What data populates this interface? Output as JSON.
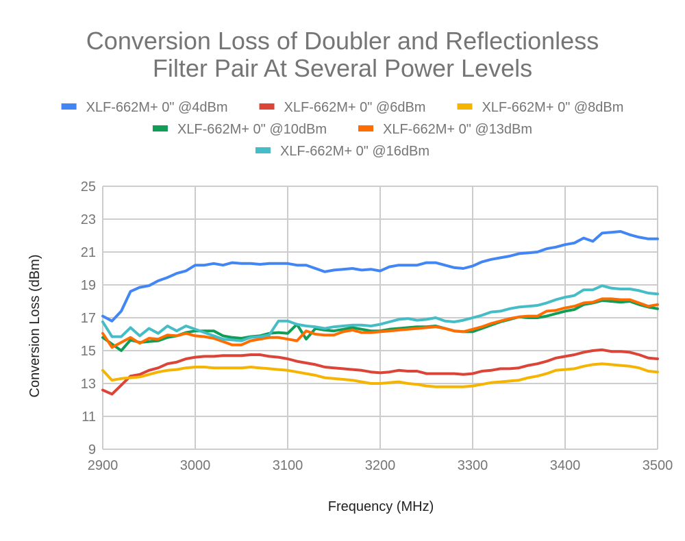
{
  "chart_data": {
    "type": "line",
    "title": [
      "Conversion Loss of Doubler and Reflectionless",
      "Filter Pair At Several Power Levels"
    ],
    "xlabel": "Frequency (MHz)",
    "ylabel": "Conversion Loss (dBm)",
    "xlim": [
      2900,
      3500
    ],
    "ylim": [
      9,
      25
    ],
    "x_ticks": [
      2900,
      3000,
      3100,
      3200,
      3300,
      3400,
      3500
    ],
    "y_ticks": [
      9,
      11,
      13,
      15,
      17,
      19,
      21,
      23,
      25
    ],
    "grid": true,
    "legend_position": "top",
    "x": [
      2900,
      2910,
      2920,
      2930,
      2940,
      2950,
      2960,
      2970,
      2980,
      2990,
      3000,
      3010,
      3020,
      3030,
      3040,
      3050,
      3060,
      3070,
      3080,
      3090,
      3100,
      3110,
      3120,
      3130,
      3140,
      3150,
      3160,
      3170,
      3180,
      3190,
      3200,
      3210,
      3220,
      3230,
      3240,
      3250,
      3260,
      3270,
      3280,
      3290,
      3300,
      3310,
      3320,
      3330,
      3340,
      3350,
      3360,
      3370,
      3380,
      3390,
      3400,
      3410,
      3420,
      3430,
      3440,
      3450,
      3460,
      3470,
      3480,
      3490,
      3500
    ],
    "series": [
      {
        "name": "XLF-662M+ 0\" @4dBm",
        "color": "#4285f4",
        "values": [
          17.1,
          16.8,
          17.4,
          18.6,
          18.85,
          18.95,
          19.25,
          19.45,
          19.7,
          19.85,
          20.2,
          20.2,
          20.3,
          20.2,
          20.35,
          20.3,
          20.3,
          20.25,
          20.3,
          20.3,
          20.3,
          20.2,
          20.2,
          20.0,
          19.8,
          19.9,
          19.95,
          20.0,
          19.9,
          19.95,
          19.85,
          20.1,
          20.2,
          20.2,
          20.2,
          20.35,
          20.35,
          20.2,
          20.05,
          20.0,
          20.15,
          20.4,
          20.55,
          20.65,
          20.75,
          20.9,
          20.95,
          21.0,
          21.2,
          21.3,
          21.45,
          21.55,
          21.85,
          21.65,
          22.15,
          22.2,
          22.25,
          22.05,
          21.9,
          21.8,
          21.8
        ]
      },
      {
        "name": "XLF-662M+ 0\" @6dBm",
        "color": "#db4437",
        "values": [
          12.6,
          12.35,
          12.9,
          13.45,
          13.55,
          13.8,
          13.95,
          14.2,
          14.3,
          14.5,
          14.6,
          14.65,
          14.65,
          14.7,
          14.7,
          14.7,
          14.75,
          14.75,
          14.65,
          14.6,
          14.5,
          14.35,
          14.25,
          14.15,
          14.0,
          13.95,
          13.9,
          13.85,
          13.8,
          13.7,
          13.65,
          13.7,
          13.8,
          13.75,
          13.75,
          13.6,
          13.6,
          13.6,
          13.6,
          13.55,
          13.6,
          13.75,
          13.8,
          13.9,
          13.9,
          13.95,
          14.1,
          14.2,
          14.35,
          14.55,
          14.65,
          14.75,
          14.9,
          15.0,
          15.05,
          14.95,
          14.95,
          14.9,
          14.75,
          14.55,
          14.5
        ]
      },
      {
        "name": "XLF-662M+ 0\" @8dBm",
        "color": "#f4b400",
        "values": [
          13.8,
          13.2,
          13.3,
          13.35,
          13.4,
          13.55,
          13.7,
          13.8,
          13.85,
          13.95,
          14.0,
          14.0,
          13.95,
          13.95,
          13.95,
          13.95,
          14.0,
          13.95,
          13.9,
          13.85,
          13.8,
          13.7,
          13.6,
          13.5,
          13.35,
          13.3,
          13.25,
          13.2,
          13.1,
          13.0,
          13.0,
          13.05,
          13.1,
          13.0,
          12.95,
          12.85,
          12.8,
          12.8,
          12.8,
          12.8,
          12.85,
          12.95,
          13.05,
          13.1,
          13.15,
          13.2,
          13.35,
          13.45,
          13.6,
          13.8,
          13.85,
          13.9,
          14.05,
          14.15,
          14.2,
          14.15,
          14.1,
          14.05,
          13.95,
          13.75,
          13.7
        ]
      },
      {
        "name": "XLF-662M+ 0\" @10dBm",
        "color": "#0f9d58",
        "values": [
          15.8,
          15.4,
          15.0,
          15.65,
          15.5,
          15.55,
          15.6,
          15.8,
          15.9,
          16.1,
          16.2,
          16.2,
          16.2,
          15.9,
          15.8,
          15.75,
          15.85,
          15.9,
          16.05,
          16.1,
          16.05,
          16.6,
          15.7,
          16.35,
          16.25,
          16.2,
          16.3,
          16.4,
          16.3,
          16.2,
          16.2,
          16.3,
          16.35,
          16.4,
          16.45,
          16.45,
          16.5,
          16.35,
          16.2,
          16.15,
          16.15,
          16.35,
          16.55,
          16.75,
          16.9,
          17.05,
          17.0,
          17.0,
          17.1,
          17.25,
          17.4,
          17.5,
          17.8,
          17.9,
          18.05,
          18.0,
          17.95,
          18.0,
          17.8,
          17.65,
          17.55
        ]
      },
      {
        "name": "XLF-662M+ 0\" @13dBm",
        "color": "#ff6d00",
        "values": [
          16.05,
          15.2,
          15.5,
          15.8,
          15.45,
          15.75,
          15.7,
          15.95,
          15.9,
          16.05,
          15.9,
          15.85,
          15.75,
          15.55,
          15.35,
          15.35,
          15.6,
          15.7,
          15.8,
          15.8,
          15.7,
          15.6,
          16.2,
          16.0,
          15.95,
          15.95,
          16.15,
          16.25,
          16.1,
          16.1,
          16.15,
          16.2,
          16.25,
          16.3,
          16.35,
          16.4,
          16.45,
          16.35,
          16.2,
          16.15,
          16.3,
          16.45,
          16.65,
          16.8,
          16.95,
          17.05,
          17.1,
          17.1,
          17.4,
          17.45,
          17.6,
          17.7,
          17.9,
          17.95,
          18.15,
          18.15,
          18.1,
          18.1,
          17.9,
          17.7,
          17.8
        ]
      },
      {
        "name": "XLF-662M+ 0\" @16dBm",
        "color": "#46bdc6",
        "values": [
          16.75,
          15.85,
          15.85,
          16.4,
          15.9,
          16.35,
          16.05,
          16.5,
          16.2,
          16.5,
          16.3,
          16.1,
          15.9,
          15.7,
          15.65,
          15.6,
          15.8,
          15.85,
          15.95,
          16.8,
          16.8,
          16.6,
          16.5,
          16.45,
          16.35,
          16.45,
          16.5,
          16.55,
          16.55,
          16.5,
          16.6,
          16.75,
          16.9,
          16.95,
          16.85,
          16.9,
          17.0,
          16.8,
          16.75,
          16.85,
          17.0,
          17.15,
          17.35,
          17.4,
          17.55,
          17.65,
          17.7,
          17.75,
          17.9,
          18.1,
          18.25,
          18.35,
          18.7,
          18.7,
          18.95,
          18.8,
          18.75,
          18.75,
          18.65,
          18.5,
          18.45
        ]
      }
    ]
  }
}
